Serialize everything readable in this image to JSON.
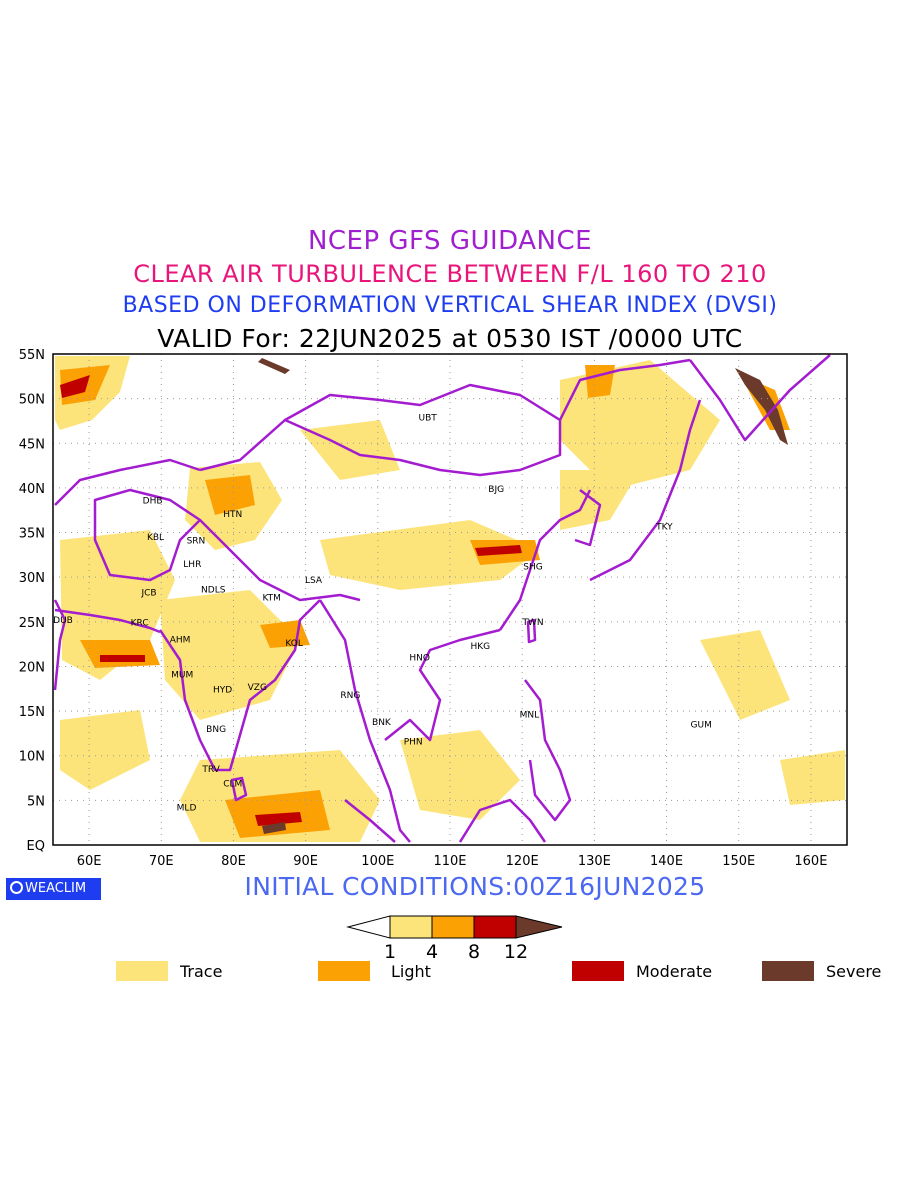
{
  "titles": {
    "line1": "NCEP GFS GUIDANCE",
    "line2": "CLEAR AIR TURBULENCE BETWEEN F/L 160 TO 210",
    "line3": "BASED ON DEFORMATION VERTICAL SHEAR INDEX (DVSI)",
    "line4": "VALID For: 22JUN2025 at 0530 IST /0000 UTC"
  },
  "map": {
    "lon_range": [
      55,
      165
    ],
    "lat_range": [
      0,
      55
    ],
    "lat_labels": [
      "55N",
      "50N",
      "45N",
      "40N",
      "35N",
      "30N",
      "25N",
      "20N",
      "15N",
      "10N",
      "5N",
      "EQ"
    ],
    "lon_labels": [
      "60E",
      "70E",
      "80E",
      "90E",
      "100E",
      "110E",
      "120E",
      "130E",
      "140E",
      "150E",
      "160E"
    ],
    "cities": [
      {
        "name": "UBT",
        "lon": 106.9,
        "lat": 47.9
      },
      {
        "name": "BJG",
        "lon": 116.4,
        "lat": 39.9
      },
      {
        "name": "TKY",
        "lon": 139.7,
        "lat": 35.7
      },
      {
        "name": "SHG",
        "lon": 121.5,
        "lat": 31.2
      },
      {
        "name": "TWN",
        "lon": 121.5,
        "lat": 25.0
      },
      {
        "name": "HKG",
        "lon": 114.2,
        "lat": 22.3
      },
      {
        "name": "HNO",
        "lon": 105.8,
        "lat": 21.0
      },
      {
        "name": "GUM",
        "lon": 144.8,
        "lat": 13.5
      },
      {
        "name": "MNL",
        "lon": 121.0,
        "lat": 14.6
      },
      {
        "name": "BNK",
        "lon": 100.5,
        "lat": 13.8
      },
      {
        "name": "PHN",
        "lon": 104.9,
        "lat": 11.6
      },
      {
        "name": "RNG",
        "lon": 96.2,
        "lat": 16.8
      },
      {
        "name": "LSA",
        "lon": 91.1,
        "lat": 29.7
      },
      {
        "name": "KTM",
        "lon": 85.3,
        "lat": 27.7
      },
      {
        "name": "KOL",
        "lon": 88.4,
        "lat": 22.6
      },
      {
        "name": "VZG",
        "lon": 83.3,
        "lat": 17.7
      },
      {
        "name": "HYD",
        "lon": 78.5,
        "lat": 17.4
      },
      {
        "name": "MUM",
        "lon": 72.9,
        "lat": 19.1
      },
      {
        "name": "AHM",
        "lon": 72.6,
        "lat": 23.0
      },
      {
        "name": "KRC",
        "lon": 67.0,
        "lat": 24.9
      },
      {
        "name": "DUB",
        "lon": 55.3,
        "lat": 25.2
      },
      {
        "name": "JCB",
        "lon": 68.3,
        "lat": 28.3
      },
      {
        "name": "NDLS",
        "lon": 77.2,
        "lat": 28.6
      },
      {
        "name": "LHR",
        "lon": 74.3,
        "lat": 31.5
      },
      {
        "name": "SRN",
        "lon": 74.8,
        "lat": 34.1
      },
      {
        "name": "KBL",
        "lon": 69.2,
        "lat": 34.5
      },
      {
        "name": "DHB",
        "lon": 68.8,
        "lat": 38.6
      },
      {
        "name": "HTN",
        "lon": 79.9,
        "lat": 37.1
      },
      {
        "name": "BNG",
        "lon": 77.6,
        "lat": 13.0
      },
      {
        "name": "TRV",
        "lon": 76.9,
        "lat": 8.5
      },
      {
        "name": "CLM",
        "lon": 79.9,
        "lat": 6.9
      },
      {
        "name": "MLD",
        "lon": 73.5,
        "lat": 4.2
      }
    ],
    "colors": {
      "trace": "#fde47a",
      "light": "#fca104",
      "moderate": "#c00000",
      "severe": "#6b3a2a",
      "coast": "#a31ccf",
      "grid": "#9a9a9a"
    }
  },
  "badge": "WEACLIM",
  "initial_conditions": "INITIAL CONDITIONS:00Z16JUN2025",
  "colorbar": {
    "ticks": [
      "1",
      "4",
      "8",
      "12"
    ],
    "colors": [
      "#ffffff",
      "#fde47a",
      "#fca104",
      "#c00000",
      "#6b3a2a"
    ]
  },
  "legend": [
    {
      "label": "Trace",
      "color": "#fde47a"
    },
    {
      "label": "Light",
      "color": "#fca104"
    },
    {
      "label": "Moderate",
      "color": "#c00000"
    },
    {
      "label": "Severe",
      "color": "#6b3a2a"
    }
  ]
}
